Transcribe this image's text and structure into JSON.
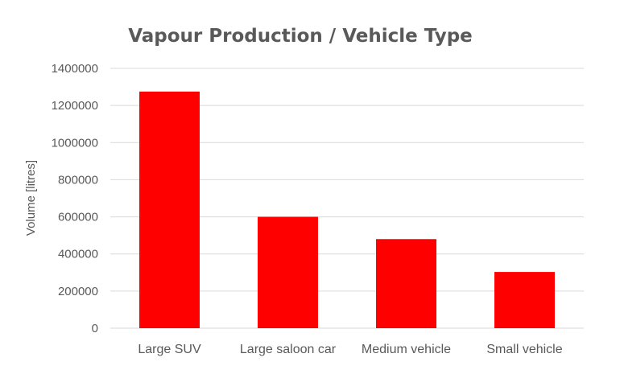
{
  "chart_data": {
    "type": "bar",
    "title": "Vapour Production / Vehicle Type",
    "xlabel": "",
    "ylabel": "Volume [litres]",
    "categories": [
      "Large SUV",
      "Large saloon car",
      "Medium vehicle",
      "Small vehicle"
    ],
    "values": [
      1275000,
      600000,
      480000,
      303000
    ],
    "ylim": [
      0,
      1400000
    ],
    "yticks": [
      "0",
      "200000",
      "400000",
      "600000",
      "800000",
      "1000000",
      "1200000",
      "1400000"
    ],
    "grid": true,
    "legend": "none",
    "bar_color": "#ff0000"
  }
}
